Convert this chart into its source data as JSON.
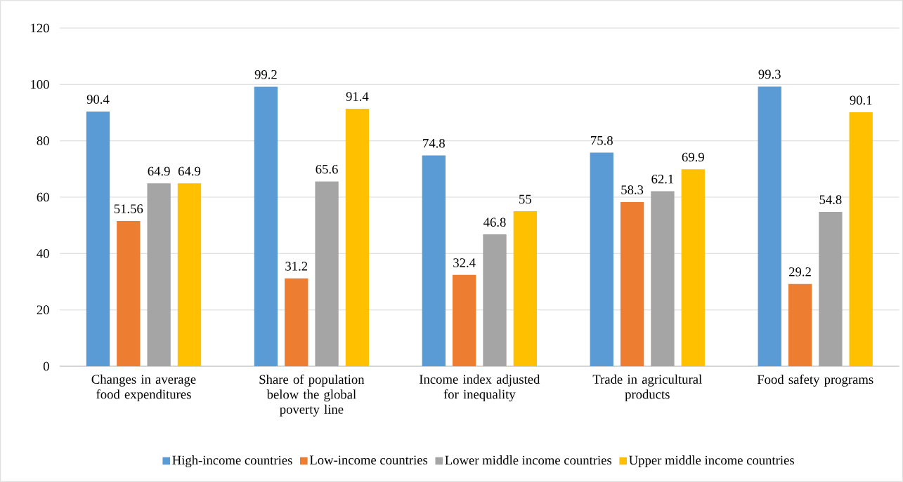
{
  "chart_data": {
    "type": "bar",
    "categories": [
      "Changes in average food expenditures",
      "Share of population below the global poverty line",
      "Income index adjusted for inequality",
      "Trade in agricultural products",
      "Food safety programs"
    ],
    "series": [
      {
        "name": "High-income countries",
        "color": "#5b9bd5",
        "values": [
          90.4,
          99.2,
          74.8,
          75.8,
          99.3
        ]
      },
      {
        "name": "Low-income countries",
        "color": "#ed7d31",
        "values": [
          51.56,
          31.2,
          32.4,
          58.3,
          29.2
        ]
      },
      {
        "name": "Lower middle income countries",
        "color": "#a5a5a5",
        "values": [
          64.9,
          65.6,
          46.8,
          62.1,
          54.8
        ]
      },
      {
        "name": "Upper middle income countries",
        "color": "#ffc000",
        "values": [
          64.9,
          91.4,
          55,
          69.9,
          90.1
        ]
      }
    ],
    "ylim": [
      0,
      120
    ],
    "yticks": [
      0,
      20,
      40,
      60,
      80,
      100,
      120
    ],
    "grid": "y",
    "legend": "bottom",
    "data_labels": true
  }
}
